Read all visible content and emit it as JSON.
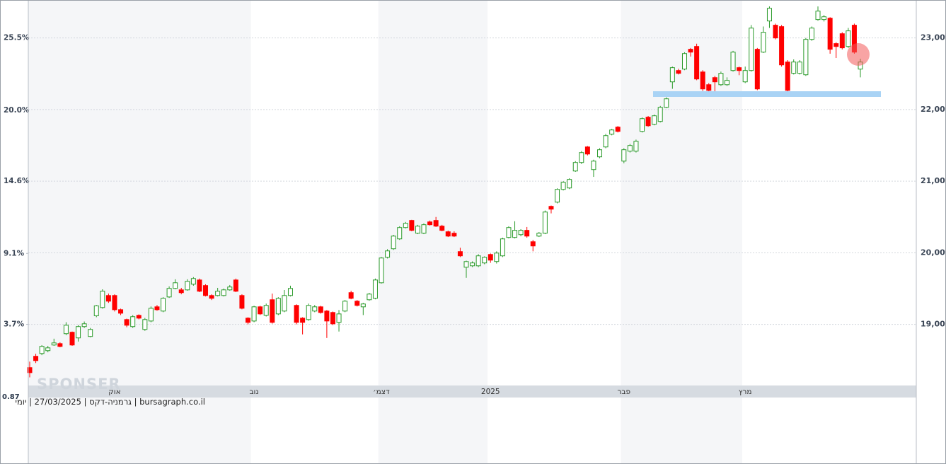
{
  "chart_data": {
    "type": "candlestick",
    "categories": [
      null,
      null,
      null,
      null,
      null,
      null,
      null,
      null,
      null,
      null,
      null,
      null,
      null,
      null,
      "אוק",
      null,
      null,
      null,
      null,
      null,
      null,
      null,
      null,
      null,
      null,
      null,
      null,
      null,
      null,
      null,
      null,
      null,
      null,
      null,
      null,
      null,
      null,
      "נוב",
      null,
      null,
      null,
      null,
      null,
      null,
      null,
      null,
      null,
      null,
      null,
      null,
      null,
      null,
      null,
      null,
      null,
      null,
      null,
      null,
      "דצמ׳",
      null,
      null,
      null,
      null,
      null,
      null,
      null,
      null,
      null,
      null,
      null,
      null,
      null,
      null,
      null,
      null,
      null,
      "2025",
      null,
      null,
      null,
      null,
      null,
      null,
      null,
      null,
      null,
      null,
      null,
      null,
      null,
      null,
      null,
      null,
      null,
      null,
      null,
      null,
      null,
      "פבר",
      null,
      null,
      null,
      null,
      null,
      null,
      null,
      null,
      null,
      null,
      null,
      null,
      null,
      null,
      null,
      null,
      null,
      null,
      null,
      "מרץ",
      null,
      null,
      null,
      null,
      null,
      null,
      null,
      null,
      null,
      null,
      null,
      null,
      null,
      null,
      null,
      null,
      null,
      null,
      null
    ],
    "open": [
      18396,
      18554,
      18593,
      18633,
      18712,
      18731,
      18870,
      18890,
      18811,
      18969,
      18831,
      19120,
      19235,
      19403,
      19403,
      19205,
      19067,
      18969,
      19126,
      18929,
      19047,
      19245,
      19186,
      19383,
      19502,
      19482,
      19482,
      19561,
      19620,
      19542,
      19403,
      19403,
      19403,
      19482,
      19620,
      19403,
      19087,
      19047,
      19245,
      19126,
      19344,
      19146,
      19186,
      19403,
      19265,
      19087,
      19067,
      19186,
      19245,
      19186,
      19166,
      19028,
      19186,
      19443,
      19324,
      19245,
      19344,
      19364,
      19581,
      19937,
      20056,
      20194,
      20352,
      20451,
      20273,
      20273,
      20431,
      20451,
      20372,
      20293,
      20273,
      20016,
      19798,
      19818,
      19818,
      19858,
      19976,
      19878,
      19957,
      20214,
      20214,
      20253,
      20313,
      20154,
      20233,
      20273,
      20648,
      20707,
      20885,
      20905,
      21142,
      21261,
      21478,
      21162,
      21340,
      21478,
      21656,
      21755,
      21280,
      21419,
      21419,
      21695,
      21893,
      21794,
      21834,
      22031,
      22387,
      22545,
      22565,
      22842,
      22881,
      22525,
      22347,
      22446,
      22347,
      22347,
      22545,
      22585,
      22387,
      22545,
      22842,
      22802,
      23237,
      23178,
      23158,
      22664,
      22506,
      22506,
      22486,
      22980,
      23257,
      23257,
      23276,
      22921,
      23059,
      22881,
      23178,
      22565
    ],
    "high": [
      18480,
      18590,
      18710,
      18700,
      18800,
      18750,
      19030,
      18900,
      18990,
      19040,
      18950,
      19270,
      19490,
      19430,
      19420,
      19220,
      19080,
      19130,
      19140,
      19090,
      19250,
      19270,
      19380,
      19530,
      19630,
      19510,
      19630,
      19660,
      19640,
      19560,
      19420,
      19510,
      19500,
      19550,
      19640,
      19420,
      19100,
      19260,
      19260,
      19290,
      19430,
      19380,
      19480,
      19540,
      19280,
      19100,
      19290,
      19270,
      19260,
      19200,
      19180,
      19200,
      19340,
      19470,
      19340,
      19300,
      19440,
      19640,
      19940,
      20050,
      20250,
      20370,
      20430,
      20460,
      20390,
      20410,
      20450,
      20500,
      20390,
      20310,
      20300,
      20070,
      19890,
      19880,
      19980,
      19950,
      19990,
      20020,
      20210,
      20370,
      20440,
      20330,
      20360,
      20180,
      20290,
      20590,
      20660,
      20900,
      21000,
      21040,
      21280,
      21420,
      21490,
      21300,
      21460,
      21660,
      21730,
      21770,
      21460,
      21520,
      21580,
      21890,
      21910,
      21930,
      22050,
      22170,
      22600,
      22570,
      22800,
      22860,
      22920,
      22550,
      22370,
      22470,
      22530,
      22450,
      22820,
      22600,
      22600,
      23180,
      22860,
      23160,
      23440,
      23200,
      23180,
      22690,
      22700,
      22690,
      23000,
      23160,
      23440,
      23320,
      23290,
      22940,
      23080,
      23140,
      23200,
      22710
    ],
    "low": [
      18260,
      18460,
      18570,
      18610,
      18700,
      18680,
      18850,
      18700,
      18760,
      18950,
      18820,
      19100,
      19220,
      19300,
      19180,
      19130,
      18960,
      18950,
      19070,
      18910,
      19030,
      19190,
      19170,
      19370,
      19490,
      19420,
      19470,
      19540,
      19450,
      19390,
      19340,
      19390,
      19390,
      19470,
      19450,
      19210,
      19000,
      19030,
      19130,
      19110,
      19010,
      19130,
      19170,
      19390,
      19000,
      18860,
      19050,
      19170,
      19150,
      18810,
      18990,
      18900,
      19170,
      19350,
      19250,
      19130,
      19330,
      19350,
      19570,
      19920,
      20040,
      20180,
      20340,
      20300,
      20260,
      20260,
      20380,
      20360,
      20300,
      20220,
      20220,
      19940,
      19650,
      19800,
      19800,
      19840,
      19860,
      19850,
      19940,
      20200,
      20200,
      20230,
      20210,
      20020,
      20220,
      20260,
      20550,
      20690,
      20870,
      20890,
      21130,
      21240,
      21360,
      21060,
      21320,
      21460,
      21640,
      21680,
      21250,
      21400,
      21400,
      21680,
      21760,
      21780,
      21820,
      22020,
      22290,
      22490,
      22550,
      22740,
      22410,
      22260,
      22200,
      22240,
      22330,
      22330,
      22530,
      22480,
      22370,
      22530,
      22270,
      22790,
      23140,
      22980,
      22600,
      22250,
      22490,
      22490,
      22470,
      22960,
      23240,
      23230,
      22780,
      22720,
      22840,
      22860,
      22780,
      22450
    ],
    "close": [
      18326,
      18494,
      18692,
      18672,
      18741,
      18692,
      18988,
      18712,
      18969,
      19008,
      18929,
      19259,
      19463,
      19324,
      19205,
      19156,
      18988,
      19107,
      19087,
      19067,
      19225,
      19205,
      19364,
      19502,
      19581,
      19443,
      19601,
      19640,
      19463,
      19403,
      19364,
      19463,
      19482,
      19522,
      19463,
      19225,
      19028,
      19245,
      19146,
      19265,
      19028,
      19364,
      19403,
      19502,
      19028,
      19028,
      19265,
      19245,
      19166,
      19047,
      19008,
      19146,
      19324,
      19364,
      19265,
      19285,
      19423,
      19620,
      19927,
      20026,
      20233,
      20352,
      20411,
      20313,
      20372,
      20392,
      20392,
      20372,
      20313,
      20233,
      20233,
      19957,
      19877,
      19858,
      19957,
      19937,
      19897,
      19996,
      20194,
      20352,
      20313,
      20313,
      20233,
      20095,
      20273,
      20569,
      20609,
      20885,
      20984,
      21024,
      21261,
      21399,
      21379,
      21280,
      21439,
      21636,
      21715,
      21695,
      21439,
      21498,
      21557,
      21873,
      21774,
      21913,
      22031,
      22150,
      22585,
      22506,
      22782,
      22802,
      22427,
      22288,
      22268,
      22387,
      22506,
      22407,
      22802,
      22545,
      22545,
      23138,
      22288,
      23079,
      23414,
      23000,
      22624,
      22268,
      22664,
      22664,
      22980,
      23138,
      23375,
      23296,
      22842,
      22881,
      22862,
      23099,
      22802,
      22664
    ],
    "up_color": "#2a9a2a",
    "down_color": "#ff0000",
    "ylim": [
      17050,
      23530
    ],
    "yticks": [
      {
        "value": 19000,
        "label": "19,000"
      },
      {
        "value": 20000,
        "label": "20,000"
      },
      {
        "value": 21000,
        "label": "21,000"
      },
      {
        "value": 22000,
        "label": "22,000"
      },
      {
        "value": 23000,
        "label": "23,000"
      }
    ],
    "y2lim": [
      -6.93,
      28.39
    ],
    "y2ticks": [
      {
        "value": 3.7,
        "label": "3.7%"
      },
      {
        "value": 9.1,
        "label": "9.1%"
      },
      {
        "value": 14.6,
        "label": "14.6%"
      },
      {
        "value": 20.0,
        "label": "20.0%"
      },
      {
        "value": 25.5,
        "label": "25.5%"
      }
    ],
    "grid": true,
    "corner_label": "0.87",
    "watermark": "SPONSER",
    "source": "bursagraph.co.il | גרמניה-דקס | 27/03/2025 | יומי"
  }
}
